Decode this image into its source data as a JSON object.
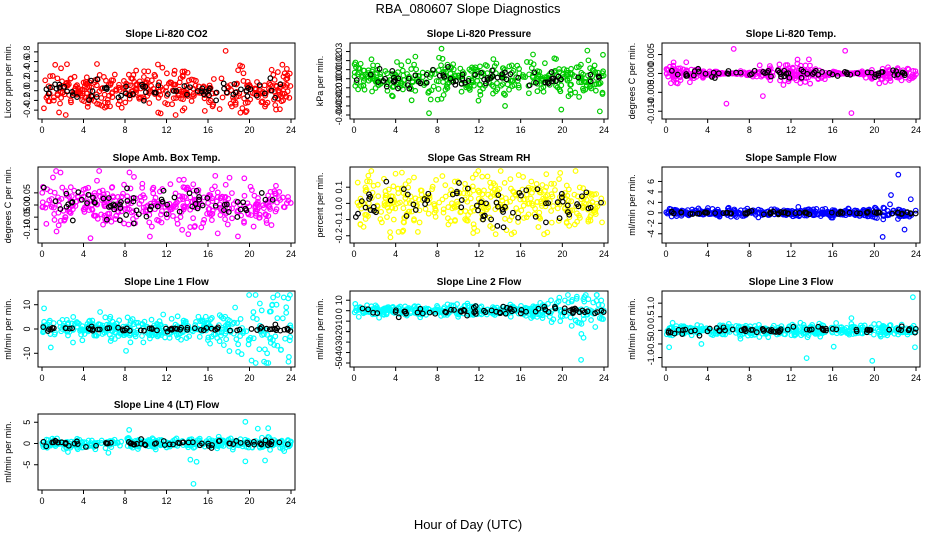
{
  "figure": {
    "title": "RBA_080607  Slope Diagnostics",
    "xlabel": "Hour of Day (UTC)"
  },
  "chart_data": [
    {
      "type": "scatter",
      "title": "Slope Li-820 CO2",
      "ylabel": "Licor ppm per min.",
      "xlim": [
        0,
        24
      ],
      "ylim": [
        -0.5,
        0.9
      ],
      "yticks": [
        "-0.4",
        "-0.2",
        "0.0",
        "0.2",
        "0.4",
        "0.6",
        "0.8"
      ],
      "xticks": [
        "0",
        "4",
        "8",
        "12",
        "16",
        "20",
        "24"
      ],
      "color": "#ff0000",
      "spread_sd": 0.2,
      "black_sd": 0.11,
      "outliers": [
        [
          17.7,
          0.82
        ],
        [
          5.3,
          0.55
        ],
        [
          11.2,
          -0.45
        ],
        [
          19.3,
          0.5
        ],
        [
          23.6,
          0.45
        ]
      ]
    },
    {
      "type": "scatter",
      "title": "Slope Li-820 Pressure",
      "ylabel": "kPa per min.",
      "xlim": [
        0,
        24
      ],
      "ylim": [
        -0.04,
        0.035
      ],
      "yticks": [
        "-0.04",
        "-0.03",
        "-0.02",
        "-0.01",
        "0.00",
        "0.01",
        "0.02",
        "0.03"
      ],
      "xticks": [
        "0",
        "4",
        "8",
        "12",
        "16",
        "20",
        "24"
      ],
      "color": "#00cc00",
      "spread_sd": 0.009,
      "black_sd": 0.005,
      "outliers": [
        [
          7.2,
          -0.038
        ],
        [
          23.6,
          -0.036
        ],
        [
          22.4,
          0.031
        ],
        [
          19.9,
          -0.034
        ],
        [
          8.5,
          0.022
        ],
        [
          14.5,
          -0.03
        ]
      ]
    },
    {
      "type": "scatter",
      "title": "Slope Li-820 Temp.",
      "ylabel": "degrees C per min.",
      "xlim": [
        0,
        24
      ],
      "ylim": [
        -0.011,
        0.007
      ],
      "yticks": [
        "-0.010",
        "-0.005",
        "0.000",
        "0.005"
      ],
      "xticks": [
        "0",
        "4",
        "8",
        "12",
        "16",
        "20",
        "24"
      ],
      "color": "#ff00ff",
      "spread_sd": 0.0012,
      "black_sd": 0.0006,
      "bursts": [
        [
          6,
          2.5,
          0.0035
        ],
        [
          17.5,
          2.5,
          0.0035
        ]
      ],
      "outliers": [
        [
          5.8,
          -0.008
        ],
        [
          17.8,
          -0.0105
        ],
        [
          6.5,
          0.0065
        ],
        [
          17.2,
          0.006
        ],
        [
          9.3,
          -0.006
        ]
      ]
    },
    {
      "type": "scatter",
      "title": "Slope Amb. Box Temp.",
      "ylabel": "degrees C per min.",
      "xlim": [
        0,
        24
      ],
      "ylim": [
        -0.14,
        0.14
      ],
      "yticks": [
        "-0.10",
        "-0.05",
        "0.00",
        "0.05"
      ],
      "xticks": [
        "0",
        "4",
        "8",
        "12",
        "16",
        "20",
        "24"
      ],
      "color": "#ff00ff",
      "spread_sd": 0.05,
      "black_sd": 0.035,
      "outliers": [
        [
          16.7,
          0.12
        ],
        [
          19.5,
          0.11
        ],
        [
          5.3,
          0.1
        ],
        [
          10.4,
          -0.13
        ],
        [
          14.1,
          -0.12
        ]
      ]
    },
    {
      "type": "scatter",
      "title": "Slope Gas Stream RH",
      "ylabel": "percent per min.",
      "xlim": [
        0,
        24
      ],
      "ylim": [
        -0.22,
        0.2
      ],
      "yticks": [
        "-0.2",
        "-0.1",
        "0.0",
        "0.1"
      ],
      "xticks": [
        "0",
        "4",
        "8",
        "12",
        "16",
        "20",
        "24"
      ],
      "color": "#ffff00",
      "spread_sd": 0.08,
      "black_sd": 0.06,
      "outliers": [
        [
          4.6,
          0.19
        ],
        [
          3.5,
          -0.21
        ],
        [
          11.7,
          0.18
        ],
        [
          13.6,
          -0.19
        ]
      ]
    },
    {
      "type": "scatter",
      "title": "Slope Sample Flow",
      "ylabel": "ml/min per min.",
      "xlim": [
        0,
        24
      ],
      "ylim": [
        -5,
        8
      ],
      "yticks": [
        "-4",
        "-2",
        "0",
        "2",
        "4",
        "6"
      ],
      "xticks": [
        "0",
        "4",
        "8",
        "12",
        "16",
        "20",
        "24"
      ],
      "color": "#0000ff",
      "spread_sd": 0.35,
      "black_sd": 0.15,
      "bursts": [
        [
          21.5,
          2.5,
          1.6
        ]
      ],
      "outliers": [
        [
          22.3,
          7.3
        ],
        [
          20.8,
          -4.6
        ],
        [
          22.9,
          -3.2
        ],
        [
          21.6,
          3.4
        ],
        [
          23.5,
          2.6
        ]
      ]
    },
    {
      "type": "scatter",
      "title": "Slope Line 1 Flow",
      "ylabel": "ml/min per min.",
      "xlim": [
        0,
        24
      ],
      "ylim": [
        -14,
        14
      ],
      "yticks": [
        "-10",
        "0",
        "10"
      ],
      "xticks": [
        "0",
        "4",
        "8",
        "12",
        "16",
        "20",
        "24"
      ],
      "color": "#00ffff",
      "spread_sd": 2.2,
      "black_sd": 0.5,
      "bursts": [
        [
          21.5,
          3,
          5
        ]
      ],
      "outliers": [
        [
          23.3,
          13
        ],
        [
          21.7,
          -10
        ],
        [
          20.2,
          -13
        ],
        [
          23.8,
          -11.5
        ],
        [
          8.1,
          -9
        ],
        [
          0.2,
          8.5
        ],
        [
          21.0,
          10.5
        ],
        [
          5.6,
          7
        ]
      ]
    },
    {
      "type": "scatter",
      "title": "Slope Line 2 Flow",
      "ylabel": "ml/min per min.",
      "xlim": [
        0,
        24
      ],
      "ylim": [
        -50,
        15
      ],
      "yticks": [
        "-50",
        "-40",
        "-30",
        "-20",
        "-10",
        "0",
        "10"
      ],
      "xticks": [
        "0",
        "4",
        "8",
        "12",
        "16",
        "20",
        "24"
      ],
      "color": "#00ffff",
      "spread_sd": 2.5,
      "black_sd": 2,
      "bursts": [
        [
          22,
          3,
          4
        ]
      ],
      "outliers": [
        [
          21.8,
          -47
        ],
        [
          19.8,
          -10
        ],
        [
          23.6,
          -7
        ],
        [
          22.5,
          11
        ]
      ]
    },
    {
      "type": "scatter",
      "title": "Slope Line 3 Flow",
      "ylabel": "ml/min per min.",
      "xlim": [
        0,
        24
      ],
      "ylim": [
        -1.2,
        1.3
      ],
      "yticks": [
        "-1.0",
        "-0.5",
        "0.0",
        "0.5",
        "1.0"
      ],
      "xticks": [
        "0",
        "4",
        "8",
        "12",
        "16",
        "20",
        "24"
      ],
      "color": "#00ffff",
      "spread_sd": 0.1,
      "black_sd": 0.06,
      "outliers": [
        [
          19.8,
          -1.12
        ],
        [
          23.7,
          1.22
        ],
        [
          23.9,
          -0.62
        ],
        [
          0.3,
          -0.62
        ],
        [
          13.5,
          -1.02
        ],
        [
          17.8,
          0.45
        ],
        [
          16.1,
          -0.6
        ],
        [
          3.4,
          -0.5
        ],
        [
          12.9,
          0.28
        ]
      ]
    },
    {
      "type": "scatter",
      "title": "Slope Line 4 (LT) Flow",
      "ylabel": "ml/min per min.",
      "xlim": [
        0,
        24
      ],
      "ylim": [
        -10,
        6
      ],
      "yticks": [
        "-5",
        "0",
        "5"
      ],
      "xticks": [
        "0",
        "4",
        "8",
        "12",
        "16",
        "20",
        "24"
      ],
      "color": "#00ffff",
      "spread_sd": 0.6,
      "black_sd": 0.35,
      "outliers": [
        [
          14.6,
          -9.5
        ],
        [
          19.6,
          5.1
        ],
        [
          20.8,
          3.5
        ],
        [
          21.8,
          3.6
        ],
        [
          14.3,
          -3.8
        ],
        [
          14.9,
          -4.3
        ],
        [
          19.6,
          -4.2
        ],
        [
          8.4,
          3.2
        ],
        [
          2.5,
          -2
        ],
        [
          6.4,
          -2.2
        ],
        [
          21.5,
          -4
        ]
      ]
    }
  ]
}
